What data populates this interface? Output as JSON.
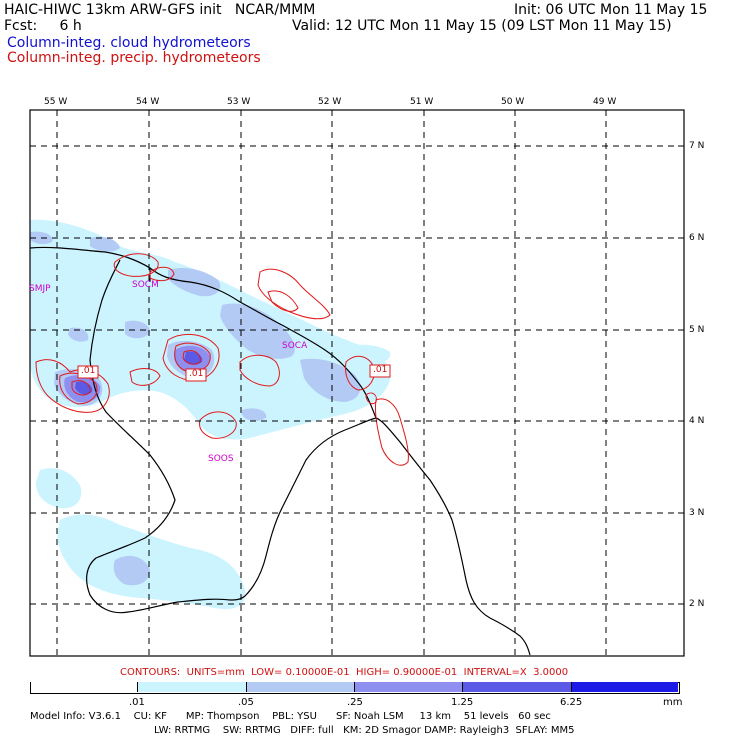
{
  "header": {
    "title_left": "HAIC-HIWC 13km ARW-GFS init   NCAR/MMM",
    "init": "Init: 06 UTC Mon 11 May 15",
    "fcst": "Fcst:     6 h",
    "valid": "Valid: 12 UTC Mon 11 May 15 (09 LST Mon 11 May 15)",
    "legend_cloud": "Column-integ. cloud hydrometeors",
    "legend_precip": "Column-integ. precip. hydrometeors"
  },
  "axes": {
    "lon_labels": [
      "55 W",
      "54 W",
      "53 W",
      "52 W",
      "51 W",
      "50 W",
      "49 W"
    ],
    "lat_labels": [
      "7 N",
      "6 N",
      "5 N",
      "4 N",
      "3 N",
      "2 N"
    ]
  },
  "stations": [
    "SMJP",
    "SOCM",
    "SOCA",
    "SOOS"
  ],
  "contour_labels": [
    ".01",
    ".01",
    ".01"
  ],
  "contours_line": "CONTOURS:  UNITS=mm  LOW= 0.10000E-01  HIGH= 0.90000E-01  INTERVAL=X  3.0000",
  "scale": {
    "labels": [
      ".01",
      ".05",
      ".25",
      "1.25",
      "6.25",
      "mm"
    ],
    "colors": [
      "#ffffff",
      "#ccf4ff",
      "#b3caf5",
      "#8f8ff0",
      "#5a5ae6",
      "#1c1ce6"
    ]
  },
  "model_info": {
    "line1": "Model Info: V3.6.1    CU: KF      MP: Thompson    PBL: YSU      SF: Noah LSM     13 km    51 levels   60 sec",
    "line2": "LW: RRTMG    SW: RRTMG   DIFF: full   KM: 2D Smagor DAMP: Rayleigh3  SFLAY: MM5"
  }
}
